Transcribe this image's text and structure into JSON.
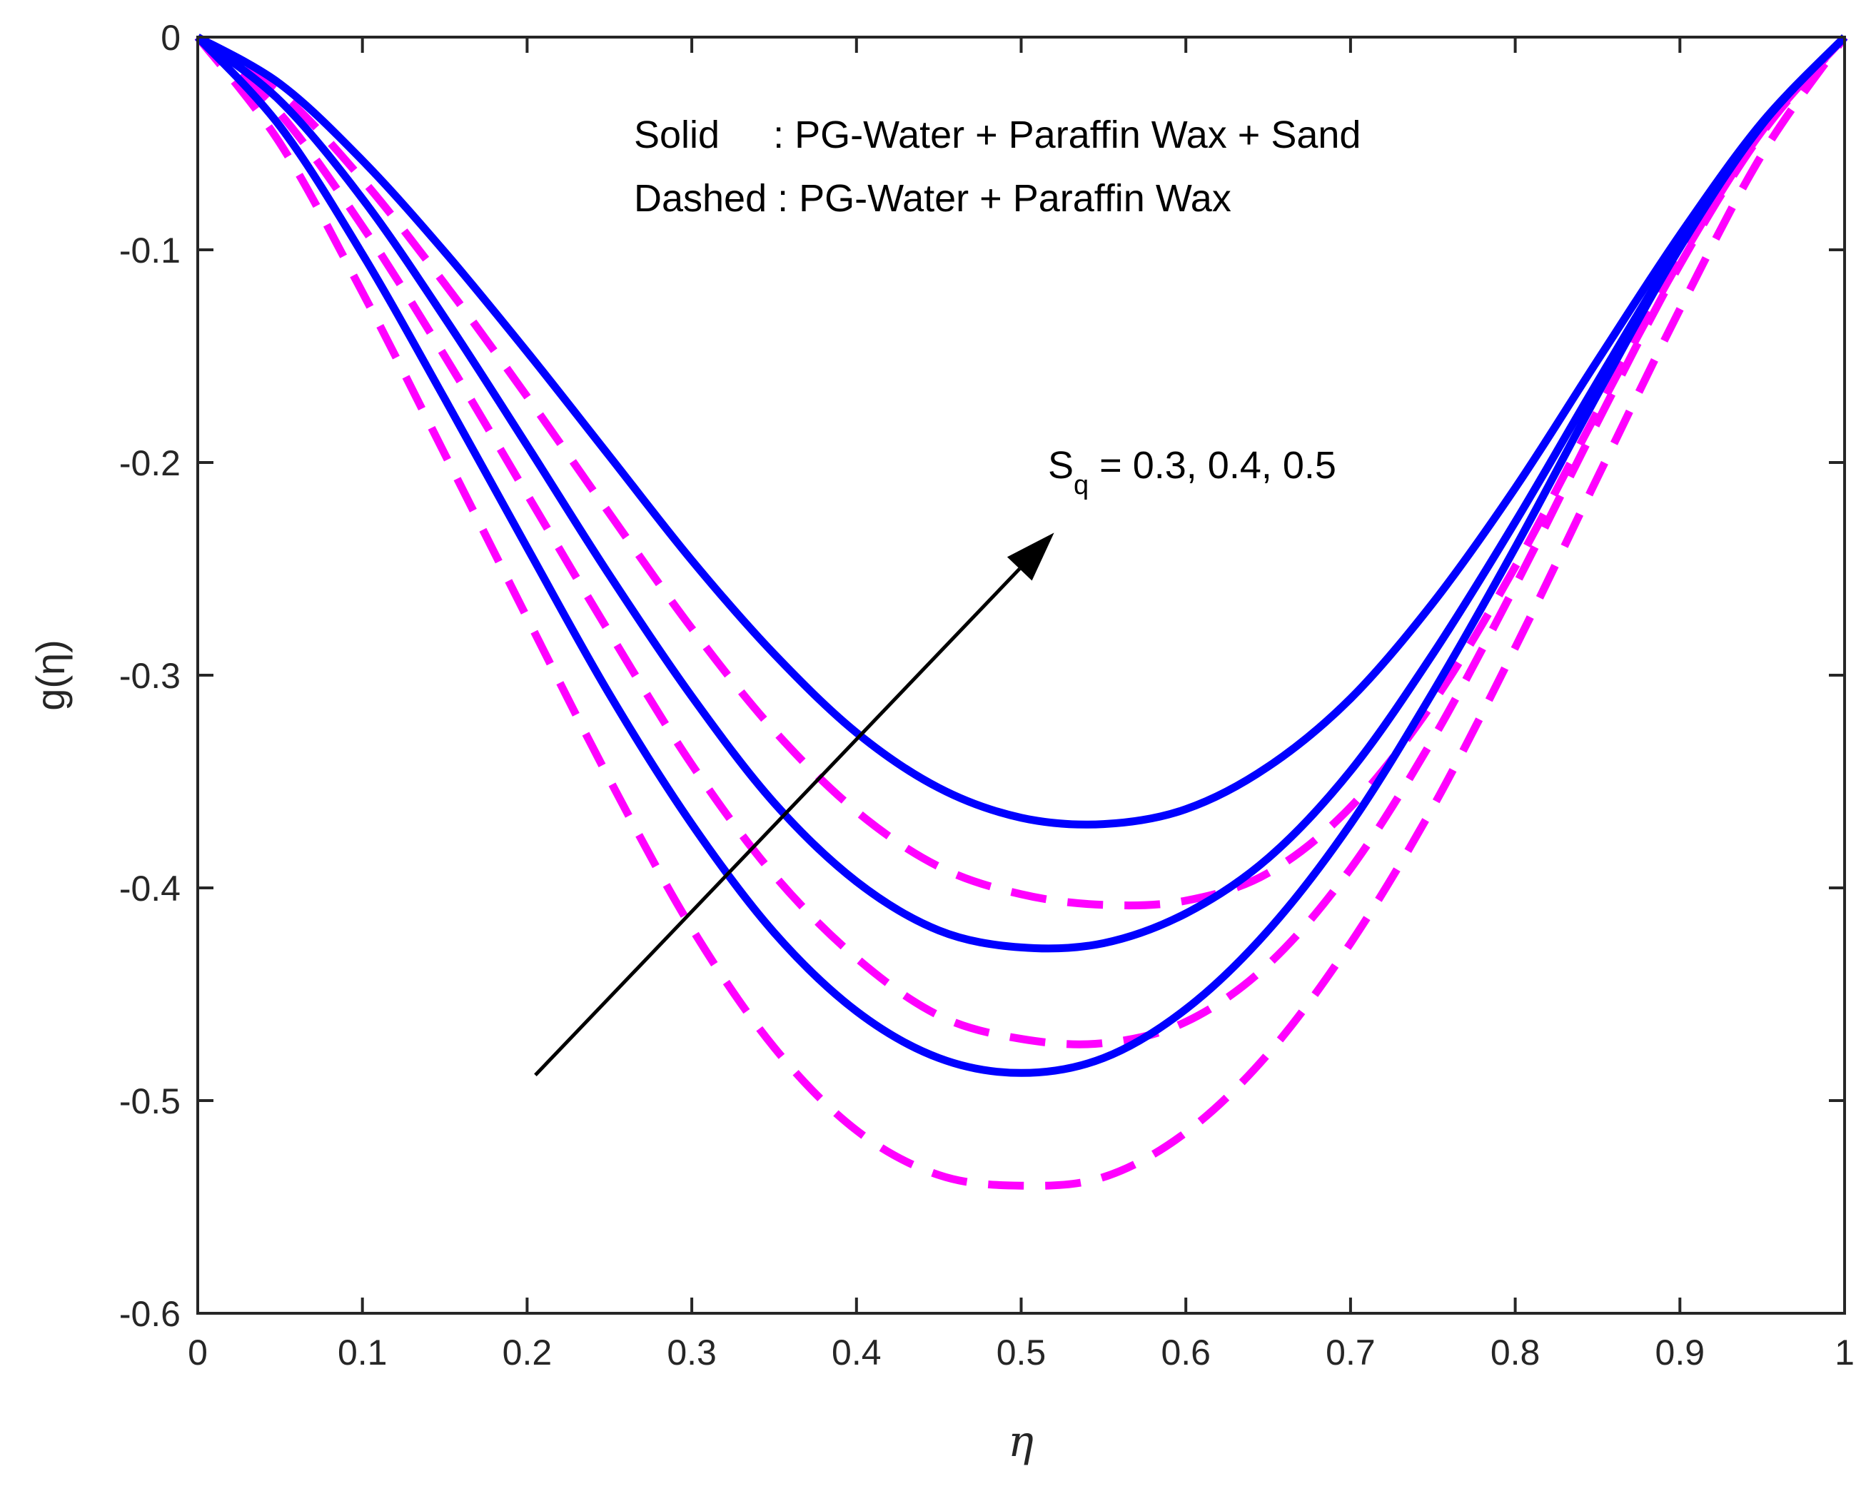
{
  "chart_data": {
    "type": "line",
    "xlabel": "η",
    "ylabel": "g(η)",
    "xlim": [
      0,
      1
    ],
    "ylim": [
      -0.6,
      0
    ],
    "x_ticks": [
      0,
      0.1,
      0.2,
      0.3,
      0.4,
      0.5,
      0.6,
      0.7,
      0.8,
      0.9,
      1
    ],
    "x_tick_labels": [
      "0",
      "0.1",
      "0.2",
      "0.3",
      "0.4",
      "0.5",
      "0.6",
      "0.7",
      "0.8",
      "0.9",
      "1"
    ],
    "y_ticks": [
      0,
      -0.1,
      -0.2,
      -0.3,
      -0.4,
      -0.5,
      -0.6
    ],
    "y_tick_labels": [
      "0",
      "-0.1",
      "-0.2",
      "-0.3",
      "-0.4",
      "-0.5",
      "-0.6"
    ],
    "grid": false,
    "legend": {
      "placement": "top-center",
      "lines": [
        "Solid     : PG-Water + Paraffin Wax + Sand",
        "Dashed : PG-Water + Paraffin Wax"
      ]
    },
    "annotation": {
      "symbol": "S",
      "subscript": "q",
      "text": " = 0.3, 0.4, 0.5",
      "arrow_from": [
        0.205,
        -0.488
      ],
      "arrow_to": [
        0.52,
        -0.233
      ]
    },
    "colors": {
      "solid": "#0000ff",
      "dashed": "#ff00ff",
      "axes": "#262626",
      "arrow": "#000000"
    },
    "series": [
      {
        "name": "PG-Water + Paraffin Wax + Sand, Sq = 0.3",
        "style": "solid",
        "color": "#0000ff",
        "x": [
          0,
          0.05,
          0.1,
          0.15,
          0.2,
          0.25,
          0.3,
          0.35,
          0.4,
          0.45,
          0.5,
          0.55,
          0.6,
          0.65,
          0.7,
          0.75,
          0.8,
          0.85,
          0.9,
          0.95,
          1
        ],
        "values": [
          0,
          -0.042,
          -0.102,
          -0.17,
          -0.24,
          -0.309,
          -0.37,
          -0.421,
          -0.458,
          -0.48,
          -0.487,
          -0.48,
          -0.457,
          -0.42,
          -0.37,
          -0.308,
          -0.24,
          -0.168,
          -0.099,
          -0.041,
          0
        ]
      },
      {
        "name": "PG-Water + Paraffin Wax + Sand, Sq = 0.4",
        "style": "solid",
        "color": "#0000ff",
        "x": [
          0,
          0.05,
          0.1,
          0.15,
          0.2,
          0.25,
          0.3,
          0.35,
          0.4,
          0.45,
          0.5,
          0.55,
          0.6,
          0.65,
          0.7,
          0.75,
          0.8,
          0.85,
          0.9,
          0.95,
          1
        ],
        "values": [
          0,
          -0.03,
          -0.076,
          -0.132,
          -0.192,
          -0.253,
          -0.31,
          -0.36,
          -0.397,
          -0.42,
          -0.428,
          -0.426,
          -0.412,
          -0.386,
          -0.345,
          -0.29,
          -0.228,
          -0.162,
          -0.098,
          -0.041,
          0
        ]
      },
      {
        "name": "PG-Water + Paraffin Wax + Sand, Sq = 0.5",
        "style": "solid",
        "color": "#0000ff",
        "x": [
          0,
          0.05,
          0.1,
          0.15,
          0.2,
          0.25,
          0.3,
          0.35,
          0.4,
          0.45,
          0.5,
          0.55,
          0.6,
          0.65,
          0.7,
          0.75,
          0.8,
          0.85,
          0.9,
          0.95,
          1
        ],
        "values": [
          0,
          -0.022,
          -0.058,
          -0.101,
          -0.148,
          -0.197,
          -0.246,
          -0.29,
          -0.327,
          -0.353,
          -0.367,
          -0.37,
          -0.363,
          -0.343,
          -0.311,
          -0.266,
          -0.212,
          -0.152,
          -0.093,
          -0.04,
          0
        ]
      },
      {
        "name": "PG-Water + Paraffin Wax, Sq = 0.3",
        "style": "dashed",
        "color": "#ff00ff",
        "x": [
          0,
          0.05,
          0.1,
          0.15,
          0.2,
          0.25,
          0.3,
          0.35,
          0.4,
          0.45,
          0.5,
          0.55,
          0.6,
          0.65,
          0.7,
          0.75,
          0.8,
          0.85,
          0.9,
          0.95,
          1
        ],
        "values": [
          0,
          -0.05,
          -0.12,
          -0.196,
          -0.273,
          -0.349,
          -0.419,
          -0.475,
          -0.514,
          -0.535,
          -0.54,
          -0.536,
          -0.515,
          -0.478,
          -0.426,
          -0.362,
          -0.287,
          -0.207,
          -0.128,
          -0.055,
          0
        ]
      },
      {
        "name": "PG-Water + Paraffin Wax, Sq = 0.4",
        "style": "dashed",
        "color": "#ff00ff",
        "x": [
          0,
          0.05,
          0.1,
          0.15,
          0.2,
          0.25,
          0.3,
          0.35,
          0.4,
          0.45,
          0.5,
          0.55,
          0.6,
          0.65,
          0.7,
          0.75,
          0.8,
          0.85,
          0.9,
          0.95,
          1
        ],
        "values": [
          0,
          -0.036,
          -0.089,
          -0.15,
          -0.215,
          -0.28,
          -0.342,
          -0.394,
          -0.433,
          -0.46,
          -0.471,
          -0.473,
          -0.463,
          -0.436,
          -0.391,
          -0.33,
          -0.258,
          -0.181,
          -0.107,
          -0.045,
          0
        ]
      },
      {
        "name": "PG-Water + Paraffin Wax, Sq = 0.5",
        "style": "dashed",
        "color": "#ff00ff",
        "x": [
          0,
          0.05,
          0.1,
          0.15,
          0.2,
          0.25,
          0.3,
          0.35,
          0.4,
          0.45,
          0.5,
          0.55,
          0.6,
          0.65,
          0.7,
          0.75,
          0.8,
          0.85,
          0.9,
          0.95,
          1
        ],
        "values": [
          0,
          -0.026,
          -0.067,
          -0.116,
          -0.169,
          -0.224,
          -0.278,
          -0.326,
          -0.364,
          -0.39,
          -0.403,
          -0.408,
          -0.406,
          -0.393,
          -0.362,
          -0.313,
          -0.249,
          -0.176,
          -0.105,
          -0.044,
          0
        ]
      }
    ]
  }
}
